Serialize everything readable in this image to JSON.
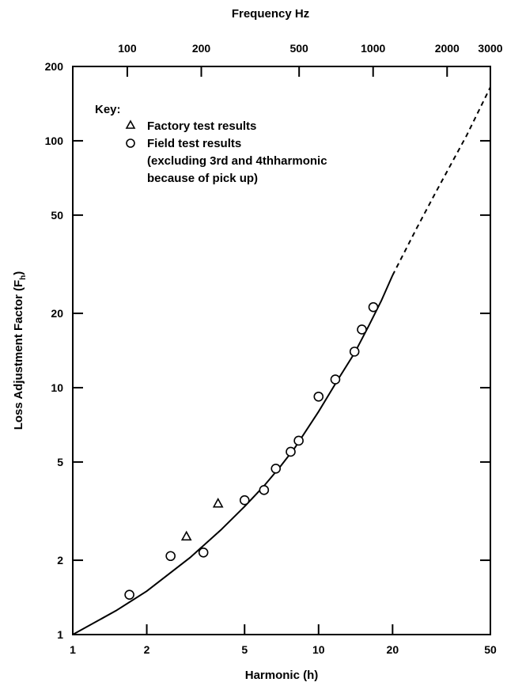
{
  "chart_data": {
    "type": "scatter",
    "title": "",
    "xlabel": "Harmonic (h)",
    "ylabel": "Loss Adjustment Factor (F",
    "ylabel_subscript": "h",
    "ylabel_close": ")",
    "top_axis_label": "Frequency Hz",
    "x_scale": "log",
    "y_scale": "log",
    "xlim": [
      1,
      50
    ],
    "ylim": [
      1,
      200
    ],
    "x_ticks": [
      1,
      2,
      5,
      10,
      20,
      50
    ],
    "x_tick_labels": [
      "1",
      "2",
      "5",
      "10",
      "20",
      "50"
    ],
    "y_ticks": [
      1,
      2,
      5,
      10,
      20,
      50,
      100,
      200
    ],
    "y_tick_labels": [
      "1",
      "2",
      "5",
      "10",
      "20",
      "50",
      "100",
      "200"
    ],
    "top_ticks_hz": [
      100,
      200,
      500,
      1000,
      2000,
      3000
    ],
    "top_tick_labels": [
      "100",
      "200",
      "500",
      "1000",
      "2000",
      "3000"
    ],
    "grid": false,
    "legend": {
      "title": "Key:",
      "placement": "top-left",
      "entries": [
        {
          "marker": "triangle",
          "label": "Factory test results"
        },
        {
          "marker": "circle",
          "label": "Field test results"
        }
      ],
      "note_lines": [
        "(excluding 3rd and 4thharmonic",
        "because of pick up)"
      ]
    },
    "series": [
      {
        "name": "Factory test results",
        "marker": "triangle",
        "points": [
          [
            2.9,
            2.5
          ],
          [
            3.9,
            3.4
          ]
        ]
      },
      {
        "name": "Field test results",
        "marker": "circle",
        "points": [
          [
            1.7,
            1.45
          ],
          [
            2.5,
            2.08
          ],
          [
            3.4,
            2.15
          ],
          [
            5.0,
            3.5
          ],
          [
            6.0,
            3.85
          ],
          [
            6.7,
            4.7
          ],
          [
            7.7,
            5.5
          ],
          [
            8.3,
            6.1
          ],
          [
            10.0,
            9.2
          ],
          [
            11.7,
            10.8
          ],
          [
            14.0,
            14.0
          ],
          [
            15.0,
            17.2
          ],
          [
            16.7,
            21.2
          ]
        ]
      },
      {
        "name": "",
        "line": "solid",
        "points": [
          [
            1,
            1
          ],
          [
            1.5,
            1.25
          ],
          [
            2,
            1.5
          ],
          [
            3,
            2.05
          ],
          [
            4,
            2.65
          ],
          [
            5,
            3.3
          ],
          [
            6,
            4.0
          ],
          [
            7,
            4.8
          ],
          [
            8,
            5.7
          ],
          [
            10,
            8.0
          ],
          [
            12,
            10.8
          ],
          [
            14,
            13.8
          ],
          [
            16,
            17.8
          ],
          [
            18,
            22.5
          ],
          [
            20,
            28.5
          ]
        ]
      },
      {
        "name": "",
        "line": "dashed",
        "points": [
          [
            20,
            28.5
          ],
          [
            25,
            44
          ],
          [
            30,
            62
          ],
          [
            40,
            105
          ],
          [
            50,
            165
          ]
        ]
      }
    ]
  }
}
